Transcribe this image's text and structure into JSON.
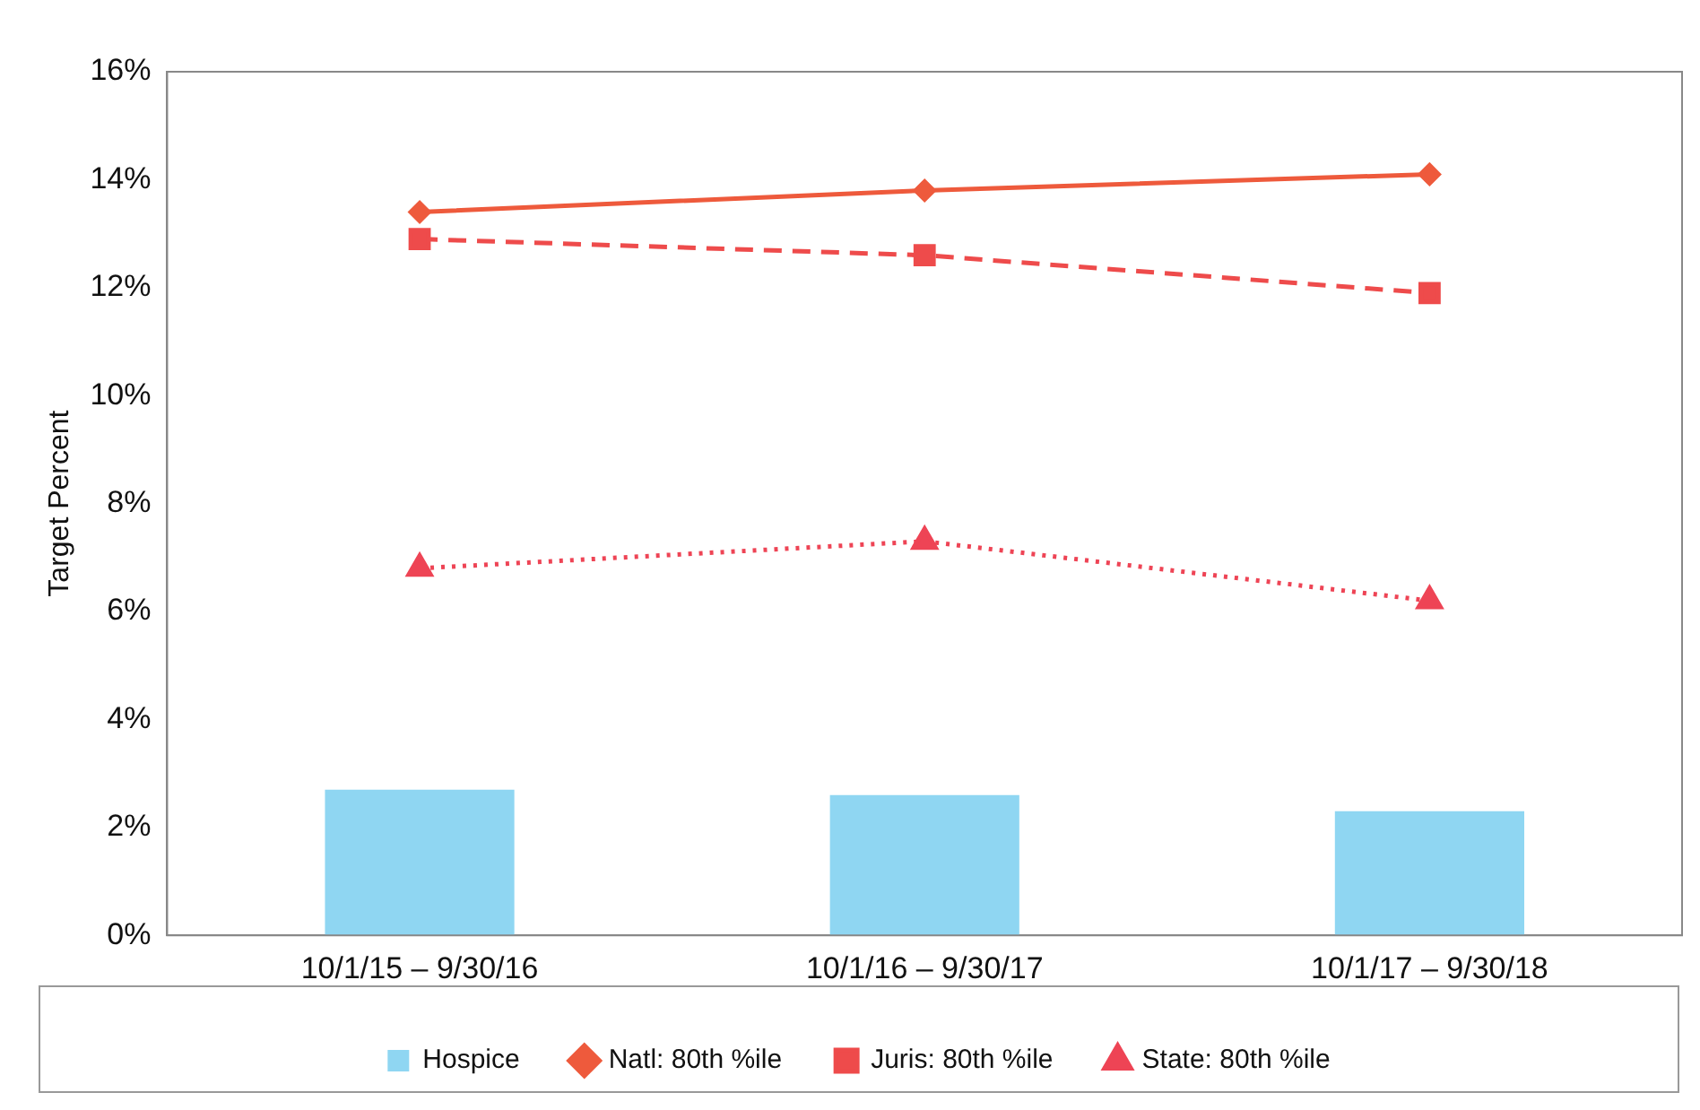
{
  "chart_data": {
    "type": "bar",
    "ylabel": "Target Percent",
    "categories": [
      "10/1/15 – 9/30/16",
      "10/1/16 – 9/30/17",
      "10/1/17 – 9/30/18"
    ],
    "series": [
      {
        "name": "Hospice",
        "color": "#8fd6f2",
        "values": [
          2.7,
          2.6,
          2.3
        ]
      },
      {
        "name": "Natl: 80th %ile",
        "type": "line",
        "color": "#ee5a3c",
        "marker": "diamond",
        "line_style": "solid",
        "values": [
          13.4,
          13.8,
          14.1
        ]
      },
      {
        "name": "Juris: 80th %ile",
        "type": "line",
        "color": "#ee4b4b",
        "marker": "square",
        "line_style": "dashed",
        "values": [
          12.9,
          12.6,
          11.9
        ]
      },
      {
        "name": "State: 80th %ile",
        "type": "line",
        "color": "#ee4455",
        "marker": "triangle",
        "line_style": "dotted",
        "values": [
          6.8,
          7.3,
          6.2
        ]
      }
    ],
    "ylim": [
      0,
      16
    ],
    "yticks": [
      {
        "value": 0,
        "label": "0%"
      },
      {
        "value": 2,
        "label": "2%"
      },
      {
        "value": 4,
        "label": "4%"
      },
      {
        "value": 6,
        "label": "6%"
      },
      {
        "value": 8,
        "label": "8%"
      },
      {
        "value": 10,
        "label": "10%"
      },
      {
        "value": 12,
        "label": "12%"
      },
      {
        "value": 14,
        "label": "14%"
      },
      {
        "value": 16,
        "label": "16%"
      }
    ],
    "grid": false,
    "legend": "bottom"
  }
}
